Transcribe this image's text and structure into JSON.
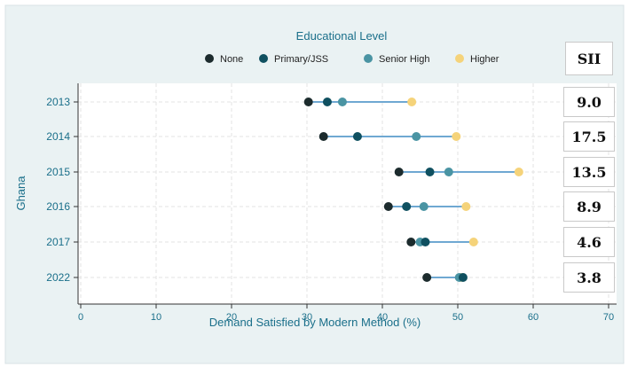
{
  "chart_data": {
    "type": "scatter",
    "subtype": "dumbbell",
    "legend_title": "Educational Level",
    "legend_placement": "top",
    "ylabel": "Ghana",
    "xlabel": "Demand Satisfied by Modern Method (%)",
    "xlim": [
      0,
      70
    ],
    "x_ticks": [
      0,
      10,
      20,
      30,
      40,
      50,
      60,
      70
    ],
    "categories": [
      "2013",
      "2014",
      "2015",
      "2016",
      "2017",
      "2022"
    ],
    "series": [
      {
        "name": "None",
        "color": "#1c2b2d",
        "values": [
          30.2,
          32.2,
          42.2,
          40.8,
          43.8,
          45.9
        ]
      },
      {
        "name": "Primary/JSS",
        "color": "#0f5060",
        "values": [
          32.7,
          36.7,
          46.3,
          43.2,
          45.7,
          50.7
        ]
      },
      {
        "name": "Senior High",
        "color": "#4a94a3",
        "values": [
          34.7,
          44.5,
          48.8,
          45.5,
          45.0,
          50.2
        ]
      },
      {
        "name": "Higher",
        "color": "#f5d37a",
        "values": [
          43.9,
          49.8,
          58.1,
          51.1,
          52.1,
          50.4
        ]
      }
    ],
    "grid": true,
    "line_color": "#6fa8d2"
  },
  "sii": {
    "header": "SII",
    "values": [
      "9.0",
      "17.5",
      "13.5",
      "8.9",
      "4.6",
      "3.8"
    ]
  }
}
